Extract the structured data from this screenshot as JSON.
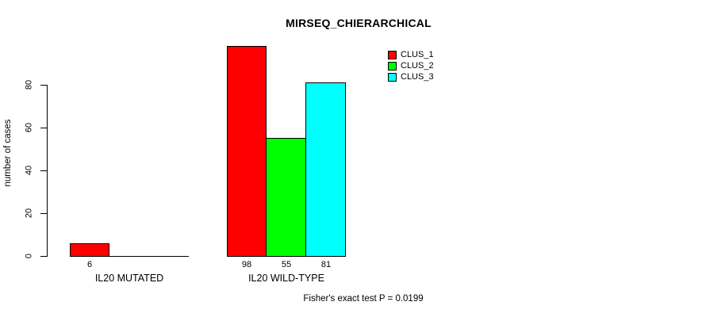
{
  "chart": {
    "title": "MIRSEQ_CHIERARCHICAL",
    "y_axis_label": "number of cases",
    "footer": "Fisher's exact test P = 0.0199"
  },
  "chart_data": {
    "type": "bar",
    "title": "MIRSEQ_CHIERARCHICAL",
    "xlabel": "",
    "ylabel": "number of cases",
    "categories": [
      "IL20 MUTATED",
      "IL20 WILD-TYPE"
    ],
    "series": [
      {
        "name": "CLUS_1",
        "color": "#FF0000",
        "values": [
          6,
          98
        ]
      },
      {
        "name": "CLUS_2",
        "color": "#00FF00",
        "values": [
          0,
          55
        ]
      },
      {
        "name": "CLUS_3",
        "color": "#00FFFF",
        "values": [
          0,
          81
        ]
      }
    ],
    "bar_value_labels": [
      [
        "6",
        "",
        ""
      ],
      [
        "98",
        "55",
        "81"
      ]
    ],
    "yticks": [
      0,
      20,
      40,
      60,
      80
    ],
    "ylim": [
      0,
      98
    ],
    "grid": false,
    "legend_position": "top-right",
    "annotation": "Fisher's exact test P = 0.0199"
  }
}
